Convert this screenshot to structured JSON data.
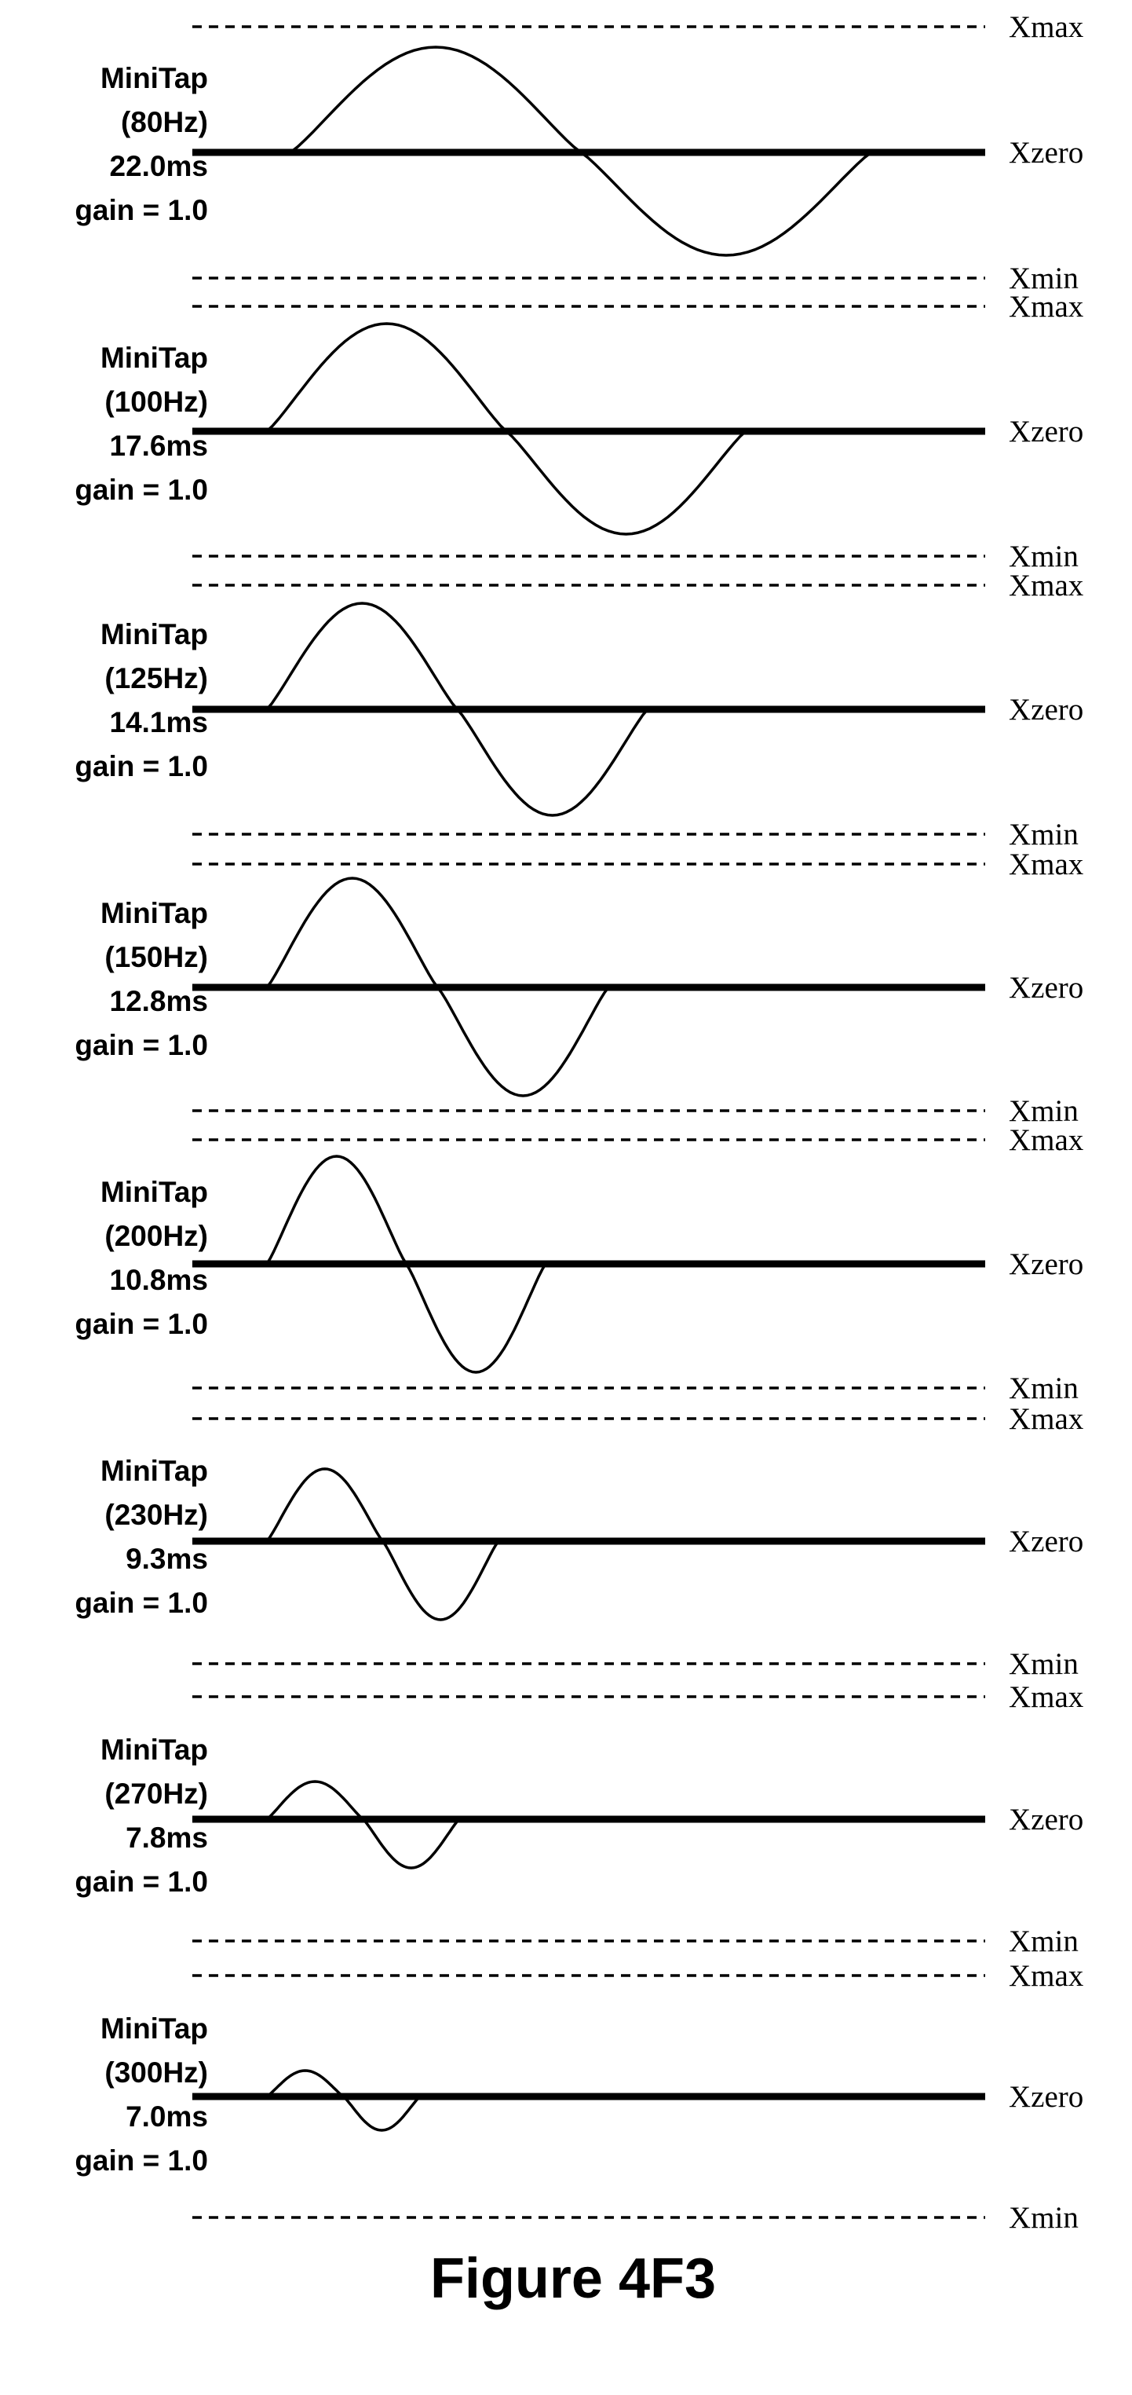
{
  "figure": {
    "caption": "Figure 4F3",
    "reference_labels": {
      "max": "Xmax",
      "zero": "Xzero",
      "min": "Xmin"
    },
    "panels": [
      {
        "name": "MiniTap",
        "frequency": "(80Hz)",
        "duration": "22.0ms",
        "gain": "gain = 1.0"
      },
      {
        "name": "MiniTap",
        "frequency": "(100Hz)",
        "duration": "17.6ms",
        "gain": "gain = 1.0"
      },
      {
        "name": "MiniTap",
        "frequency": "(125Hz)",
        "duration": "14.1ms",
        "gain": "gain = 1.0"
      },
      {
        "name": "MiniTap",
        "frequency": "(150Hz)",
        "duration": "12.8ms",
        "gain": "gain = 1.0"
      },
      {
        "name": "MiniTap",
        "frequency": "(200Hz)",
        "duration": "10.8ms",
        "gain": "gain = 1.0"
      },
      {
        "name": "MiniTap",
        "frequency": "(230Hz)",
        "duration": "9.3ms",
        "gain": "gain = 1.0"
      },
      {
        "name": "MiniTap",
        "frequency": "(270Hz)",
        "duration": "7.8ms",
        "gain": "gain = 1.0"
      },
      {
        "name": "MiniTap",
        "frequency": "(300Hz)",
        "duration": "7.0ms",
        "gain": "gain = 1.0"
      }
    ]
  }
}
